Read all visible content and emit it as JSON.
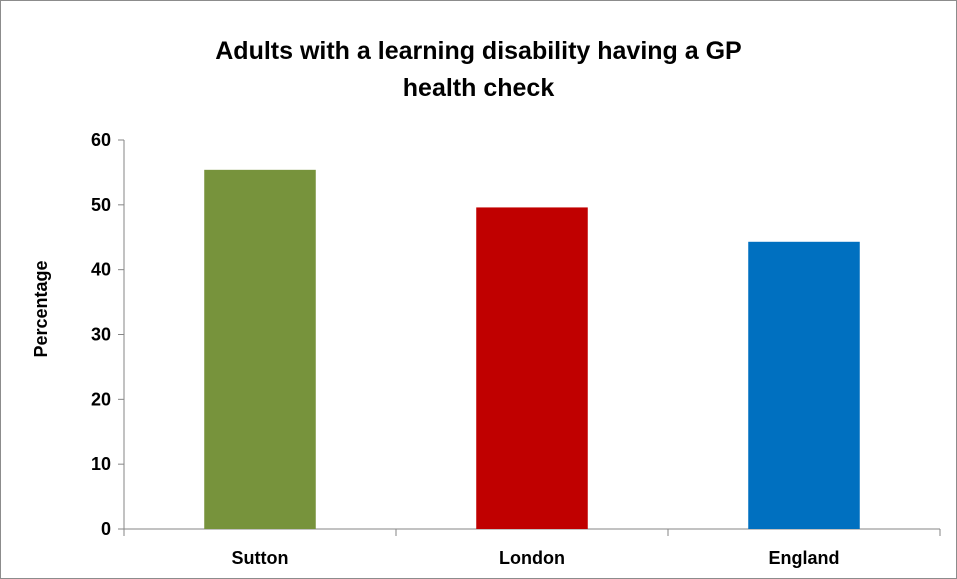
{
  "chart_data": {
    "type": "bar",
    "title_lines": [
      "Adults with a learning disability having a GP",
      "health check"
    ],
    "xlabel": "",
    "ylabel": "Percentage",
    "categories": [
      "Sutton",
      "London",
      "England"
    ],
    "values": [
      55.4,
      49.6,
      44.3
    ],
    "colors": [
      "#77933c",
      "#c00000",
      "#0070c0"
    ],
    "ylim": [
      0,
      60
    ],
    "yticks": [
      0,
      10,
      20,
      30,
      40,
      50,
      60
    ],
    "grid": false,
    "legend": "none"
  }
}
